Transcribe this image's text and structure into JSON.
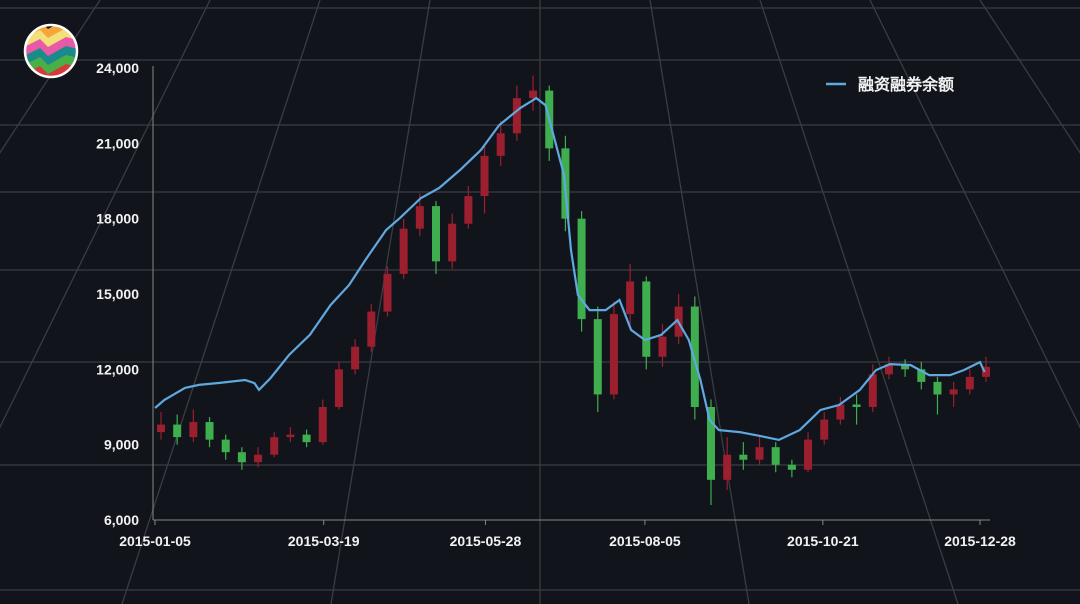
{
  "chart_data": {
    "type": "candlestick+line",
    "title": "",
    "xlabel": "",
    "ylabel": "",
    "ylim": [
      6000,
      24000
    ],
    "yticks": [
      "6,000",
      "9,000",
      "12,000",
      "15,000",
      "18,000",
      "21,000",
      "24,000"
    ],
    "ytick_values": [
      6000,
      9000,
      12000,
      15000,
      18000,
      21000,
      24000
    ],
    "xticks": [
      "2015-01-05",
      "2015-03-19",
      "2015-05-28",
      "2015-08-05",
      "2015-10-21",
      "2015-12-28"
    ],
    "xlim": [
      "2015-01-05",
      "2015-12-30"
    ],
    "grid": true,
    "legend_position": "top-right",
    "colors": {
      "line": "#5fa8e0",
      "up": "#9b1f2e",
      "down": "#3fae4e",
      "background": "#12141b",
      "grid": "#3a3c43"
    },
    "line_series": {
      "name": "融资融券余额",
      "dates": [
        "2015-01-05",
        "2015-01-09",
        "2015-01-18",
        "2015-01-24",
        "2015-02-02",
        "2015-02-13",
        "2015-02-17",
        "2015-02-19",
        "2015-02-24",
        "2015-03-04",
        "2015-03-13",
        "2015-03-22",
        "2015-03-30",
        "2015-04-06",
        "2015-04-15",
        "2015-04-21",
        "2015-04-30",
        "2015-05-08",
        "2015-05-17",
        "2015-05-26",
        "2015-06-03",
        "2015-06-12",
        "2015-06-19",
        "2015-06-23",
        "2015-06-27",
        "2015-07-01",
        "2015-07-04",
        "2015-07-07",
        "2015-07-12",
        "2015-07-19",
        "2015-07-25",
        "2015-07-30",
        "2015-08-05",
        "2015-08-12",
        "2015-08-19",
        "2015-08-24",
        "2015-08-29",
        "2015-09-02",
        "2015-09-06",
        "2015-09-15",
        "2015-09-24",
        "2015-10-02",
        "2015-10-11",
        "2015-10-20",
        "2015-10-28",
        "2015-11-06",
        "2015-11-13",
        "2015-11-19",
        "2015-11-28",
        "2015-12-06",
        "2015-12-15",
        "2015-12-21",
        "2015-12-28",
        "2015-12-30"
      ],
      "values": [
        10460,
        10780,
        11260,
        11380,
        11460,
        11575,
        11450,
        11180,
        11650,
        12570,
        13370,
        14560,
        15360,
        16350,
        17550,
        18030,
        18820,
        19220,
        19940,
        20730,
        21730,
        22400,
        22800,
        22520,
        21130,
        19740,
        16750,
        14960,
        14360,
        14360,
        14760,
        13570,
        13170,
        13370,
        13960,
        13170,
        11580,
        9980,
        9580,
        9500,
        9340,
        9190,
        9580,
        10380,
        10580,
        11180,
        11970,
        12210,
        12170,
        11770,
        11770,
        11970,
        12290,
        11890
      ]
    },
    "candles": {
      "fields": [
        "open",
        "high",
        "low",
        "close"
      ],
      "dates": [
        "2015-01-05",
        "2015-01-12",
        "2015-01-19",
        "2015-01-26",
        "2015-02-02",
        "2015-02-09",
        "2015-02-16",
        "2015-02-23",
        "2015-03-02",
        "2015-03-09",
        "2015-03-16",
        "2015-03-23",
        "2015-03-30",
        "2015-04-06",
        "2015-04-13",
        "2015-04-20",
        "2015-04-27",
        "2015-05-04",
        "2015-05-11",
        "2015-05-18",
        "2015-05-25",
        "2015-06-01",
        "2015-06-08",
        "2015-06-15",
        "2015-06-22",
        "2015-06-29",
        "2015-07-06",
        "2015-07-13",
        "2015-07-20",
        "2015-07-27",
        "2015-08-03",
        "2015-08-10",
        "2015-08-17",
        "2015-08-24",
        "2015-08-31",
        "2015-09-07",
        "2015-09-14",
        "2015-09-21",
        "2015-09-28",
        "2015-10-05",
        "2015-10-12",
        "2015-10-19",
        "2015-10-26",
        "2015-11-02",
        "2015-11-09",
        "2015-11-16",
        "2015-11-23",
        "2015-11-30",
        "2015-12-07",
        "2015-12-14",
        "2015-12-21",
        "2015-12-28"
      ],
      "values": [
        [
          9500,
          10300,
          9200,
          9800
        ],
        [
          9800,
          10200,
          9000,
          9300
        ],
        [
          9300,
          10400,
          9100,
          9900
        ],
        [
          9900,
          10100,
          8900,
          9200
        ],
        [
          9200,
          9400,
          8400,
          8700
        ],
        [
          8700,
          8900,
          8000,
          8300
        ],
        [
          8300,
          8900,
          8100,
          8600
        ],
        [
          8600,
          9500,
          8500,
          9300
        ],
        [
          9300,
          9700,
          9100,
          9400
        ],
        [
          9400,
          9600,
          8900,
          9100
        ],
        [
          9100,
          10800,
          9000,
          10500
        ],
        [
          10500,
          12300,
          10400,
          12000
        ],
        [
          12000,
          13200,
          11800,
          12900
        ],
        [
          12900,
          14600,
          12700,
          14300
        ],
        [
          14300,
          16100,
          14100,
          15800
        ],
        [
          15800,
          18000,
          15600,
          17600
        ],
        [
          17600,
          19000,
          17300,
          18500
        ],
        [
          18500,
          18700,
          15800,
          16300
        ],
        [
          16300,
          18200,
          16000,
          17800
        ],
        [
          17800,
          19300,
          17600,
          18900
        ],
        [
          18900,
          20900,
          18200,
          20500
        ],
        [
          20500,
          21900,
          20100,
          21400
        ],
        [
          21400,
          23300,
          21100,
          22800
        ],
        [
          22800,
          23700,
          22300,
          23100
        ],
        [
          23100,
          23300,
          20300,
          20800
        ],
        [
          20800,
          21300,
          17500,
          18000
        ],
        [
          18000,
          18300,
          13500,
          14000
        ],
        [
          14000,
          14500,
          10300,
          11000
        ],
        [
          11000,
          14700,
          10800,
          14200
        ],
        [
          14200,
          16200,
          13800,
          15500
        ],
        [
          15500,
          15700,
          12000,
          12500
        ],
        [
          12500,
          13800,
          12100,
          13300
        ],
        [
          13300,
          15000,
          13000,
          14500
        ],
        [
          14500,
          14900,
          10000,
          10500
        ],
        [
          10500,
          10800,
          6600,
          7600
        ],
        [
          7600,
          9300,
          7200,
          8600
        ],
        [
          8600,
          9100,
          8000,
          8400
        ],
        [
          8400,
          9300,
          8200,
          8900
        ],
        [
          8900,
          9100,
          7900,
          8200
        ],
        [
          8200,
          8400,
          7700,
          8000
        ],
        [
          8000,
          9500,
          7900,
          9200
        ],
        [
          9200,
          10300,
          9000,
          10000
        ],
        [
          10000,
          10900,
          9800,
          10600
        ],
        [
          10600,
          11000,
          9800,
          10500
        ],
        [
          10500,
          12200,
          10300,
          11800
        ],
        [
          11800,
          12500,
          11600,
          12200
        ],
        [
          12200,
          12400,
          11700,
          12000
        ],
        [
          12000,
          12300,
          11200,
          11500
        ],
        [
          11500,
          11700,
          10200,
          11000
        ],
        [
          11000,
          11500,
          10500,
          11200
        ],
        [
          11200,
          12000,
          11000,
          11700
        ],
        [
          11700,
          12500,
          11500,
          12100
        ]
      ]
    }
  },
  "logo": {
    "name": "rainbow-zigzag-logo"
  }
}
